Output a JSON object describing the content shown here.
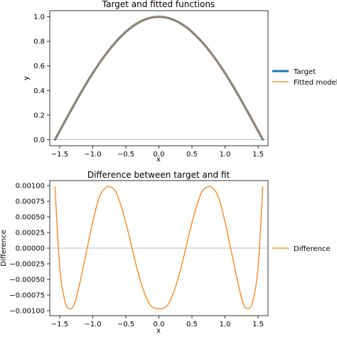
{
  "chart_data": [
    {
      "type": "line",
      "title": "Target and fitted functions",
      "xlabel": "x",
      "ylabel": "y",
      "xlim": [
        -1.65,
        1.65
      ],
      "ylim": [
        -0.05,
        1.05
      ],
      "xticks": [
        -1.5,
        -1.0,
        -0.5,
        0.0,
        0.5,
        1.0,
        1.5
      ],
      "xtick_labels": [
        "−1.5",
        "−1.0",
        "−0.5",
        "0.0",
        "0.5",
        "1.0",
        "1.5"
      ],
      "yticks": [
        0.0,
        0.2,
        0.4,
        0.6,
        0.8,
        1.0
      ],
      "ytick_labels": [
        "0.0",
        "0.2",
        "0.4",
        "0.6",
        "0.8",
        "1.0"
      ],
      "hline": 0,
      "legend": "outside-right",
      "x": [
        -1.5708,
        -1.3744,
        -1.1781,
        -0.9817,
        -0.7854,
        -0.589,
        -0.3927,
        -0.1963,
        0.0,
        0.1963,
        0.3927,
        0.589,
        0.7854,
        0.9817,
        1.1781,
        1.3744,
        1.5708
      ],
      "series": [
        {
          "name": "Target",
          "color": "#1f77b4",
          "values": [
            0.0,
            0.195,
            0.383,
            0.556,
            0.707,
            0.831,
            0.924,
            0.981,
            1.0,
            0.981,
            0.924,
            0.831,
            0.707,
            0.556,
            0.383,
            0.195,
            0.0
          ]
        },
        {
          "name": "Fitted model",
          "color": "#ff7f0e",
          "values": [
            0.001,
            0.196,
            0.383,
            0.555,
            0.706,
            0.831,
            0.925,
            0.982,
            1.001,
            0.982,
            0.925,
            0.831,
            0.706,
            0.555,
            0.383,
            0.196,
            0.001
          ]
        }
      ]
    },
    {
      "type": "line",
      "title": "Difference between target and fit",
      "xlabel": "x",
      "ylabel": "Difference",
      "xlim": [
        -1.65,
        1.65
      ],
      "ylim": [
        -0.00108,
        0.00108
      ],
      "xticks": [
        -1.5,
        -1.0,
        -0.5,
        0.0,
        0.5,
        1.0,
        1.5
      ],
      "xtick_labels": [
        "−1.5",
        "−1.0",
        "−0.5",
        "0.0",
        "0.5",
        "1.0",
        "1.5"
      ],
      "yticks": [
        -0.001,
        -0.00075,
        -0.0005,
        -0.00025,
        0.0,
        0.00025,
        0.0005,
        0.00075,
        0.001
      ],
      "ytick_labels": [
        "−0.00100",
        "−0.00075",
        "−0.00050",
        "−0.00025",
        "0.00000",
        "0.00025",
        "0.00050",
        "0.00075",
        "0.00100"
      ],
      "hline": 0,
      "legend": "outside-right",
      "x": [
        -1.5708,
        -1.5,
        -1.42,
        -1.35,
        -1.28,
        -1.2,
        -1.1,
        -1.0,
        -0.9,
        -0.8,
        -0.74,
        -0.65,
        -0.55,
        -0.45,
        -0.35,
        -0.25,
        -0.15,
        -0.07,
        0.0,
        0.07,
        0.15,
        0.25,
        0.35,
        0.45,
        0.55,
        0.65,
        0.74,
        0.8,
        0.9,
        1.0,
        1.1,
        1.2,
        1.28,
        1.35,
        1.42,
        1.5,
        1.5708
      ],
      "series": [
        {
          "name": "Difference",
          "color": "#ff7f0e",
          "values": [
            0.00098,
            -0.0003,
            -0.00085,
            -0.00097,
            -0.0009,
            -0.00058,
            -8e-05,
            0.00042,
            0.00082,
            0.00097,
            0.00098,
            0.0009,
            0.0006,
            0.0002,
            -0.00025,
            -0.00062,
            -0.00088,
            -0.00096,
            -0.00097,
            -0.00096,
            -0.00088,
            -0.00062,
            -0.00025,
            0.0002,
            0.0006,
            0.0009,
            0.00098,
            0.00097,
            0.00082,
            0.00042,
            -8e-05,
            -0.00058,
            -0.0009,
            -0.00097,
            -0.00085,
            -0.0003,
            0.00098
          ]
        }
      ]
    }
  ]
}
